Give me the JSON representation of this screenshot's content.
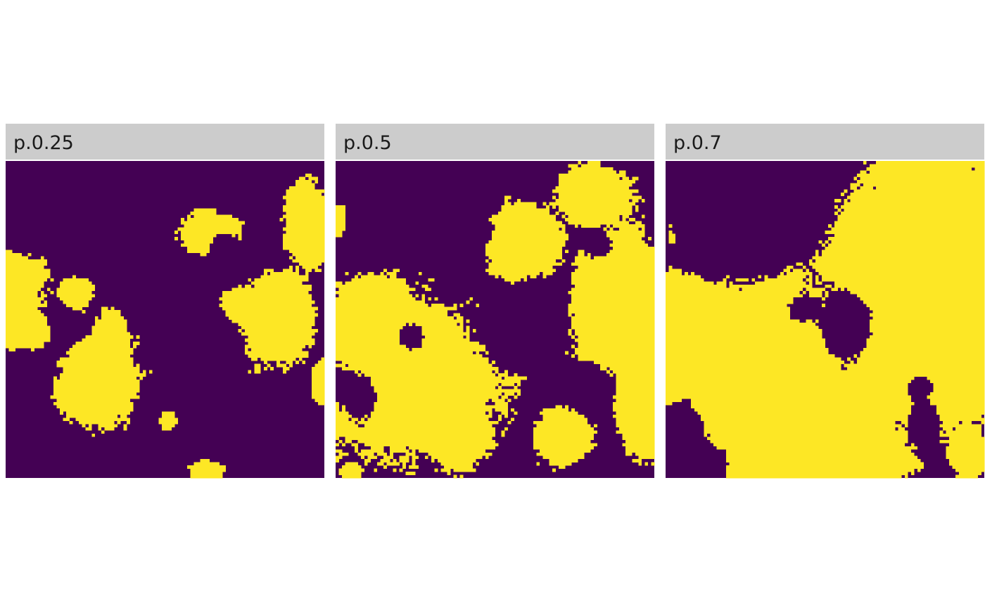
{
  "chart_data": {
    "type": "heatmap",
    "grid_size": 100,
    "legend": "none",
    "grid": false,
    "colors": {
      "low": "#440154",
      "high": "#FDE725",
      "strip": "#CCCCCC",
      "border": "#FFFFFF"
    },
    "panels": [
      {
        "label": "p.0.25",
        "proportion": 0.25,
        "blobs": [
          {
            "cx": -0.03,
            "cy": 0.44,
            "rx": 0.17,
            "ry": 0.16
          },
          {
            "cx": 0.08,
            "cy": 0.53,
            "rx": 0.1,
            "ry": 0.07
          },
          {
            "cx": 0.29,
            "cy": 0.7,
            "rx": 0.14,
            "ry": 0.17
          },
          {
            "cx": 0.33,
            "cy": 0.56,
            "rx": 0.06,
            "ry": 0.11
          },
          {
            "cx": 0.22,
            "cy": 0.42,
            "rx": 0.06,
            "ry": 0.06
          },
          {
            "cx": 0.51,
            "cy": 0.82,
            "rx": 0.03,
            "ry": 0.03
          },
          {
            "cx": 0.65,
            "cy": 0.23,
            "rx": 0.1,
            "ry": 0.08
          },
          {
            "cx": 0.86,
            "cy": 0.49,
            "rx": 0.13,
            "ry": 0.15
          },
          {
            "cx": 0.73,
            "cy": 0.45,
            "rx": 0.06,
            "ry": 0.06
          },
          {
            "cx": 0.95,
            "cy": 0.19,
            "rx": 0.08,
            "ry": 0.15
          },
          {
            "cx": 0.63,
            "cy": 0.98,
            "rx": 0.06,
            "ry": 0.04
          },
          {
            "cx": 0.99,
            "cy": 0.7,
            "rx": 0.03,
            "ry": 0.07
          }
        ],
        "holes": [
          {
            "cx": 0.18,
            "cy": 0.52,
            "rx": 0.05,
            "ry": 0.05
          },
          {
            "cx": 0.68,
            "cy": 0.26,
            "rx": 0.04,
            "ry": 0.04
          }
        ]
      },
      {
        "label": "p.0.5",
        "proportion": 0.5,
        "blobs": [
          {
            "cx": 0.23,
            "cy": 0.68,
            "rx": 0.28,
            "ry": 0.26
          },
          {
            "cx": 0.12,
            "cy": 0.5,
            "rx": 0.15,
            "ry": 0.15
          },
          {
            "cx": 0.37,
            "cy": 0.82,
            "rx": 0.12,
            "ry": 0.15
          },
          {
            "cx": 0.6,
            "cy": 0.26,
            "rx": 0.13,
            "ry": 0.12
          },
          {
            "cx": 0.9,
            "cy": 0.45,
            "rx": 0.16,
            "ry": 0.28
          },
          {
            "cx": 0.82,
            "cy": 0.12,
            "rx": 0.13,
            "ry": 0.1
          },
          {
            "cx": 0.95,
            "cy": 0.75,
            "rx": 0.08,
            "ry": 0.18
          },
          {
            "cx": 0.72,
            "cy": 0.87,
            "rx": 0.1,
            "ry": 0.1
          },
          {
            "cx": 0.01,
            "cy": 0.18,
            "rx": 0.02,
            "ry": 0.05
          },
          {
            "cx": 0.05,
            "cy": 0.98,
            "rx": 0.03,
            "ry": 0.03
          }
        ],
        "holes": [
          {
            "cx": 0.24,
            "cy": 0.56,
            "rx": 0.04,
            "ry": 0.04
          },
          {
            "cx": 0.55,
            "cy": 0.57,
            "rx": 0.05,
            "ry": 0.07
          },
          {
            "cx": 0.83,
            "cy": 0.27,
            "rx": 0.03,
            "ry": 0.03
          },
          {
            "cx": 0.08,
            "cy": 0.73,
            "rx": 0.06,
            "ry": 0.07
          },
          {
            "cx": 0.8,
            "cy": 0.72,
            "rx": 0.05,
            "ry": 0.06
          }
        ]
      },
      {
        "label": "p.0.7",
        "proportion": 0.7,
        "blobs": [
          {
            "cx": 0.3,
            "cy": 0.68,
            "rx": 0.34,
            "ry": 0.4
          },
          {
            "cx": 0.05,
            "cy": 0.55,
            "rx": 0.13,
            "ry": 0.3
          },
          {
            "cx": 0.76,
            "cy": 0.3,
            "rx": 0.32,
            "ry": 0.32
          },
          {
            "cx": 0.78,
            "cy": 0.62,
            "rx": 0.3,
            "ry": 0.23
          },
          {
            "cx": 0.76,
            "cy": 0.05,
            "rx": 0.1,
            "ry": 0.08
          },
          {
            "cx": 0.58,
            "cy": 0.92,
            "rx": 0.2,
            "ry": 0.12
          },
          {
            "cx": 0.95,
            "cy": 0.92,
            "rx": 0.06,
            "ry": 0.1
          },
          {
            "cx": 0.02,
            "cy": 0.22,
            "rx": 0.04,
            "ry": 0.07
          }
        ],
        "holes": [
          {
            "cx": 0.57,
            "cy": 0.52,
            "rx": 0.08,
            "ry": 0.12
          },
          {
            "cx": 0.43,
            "cy": 0.47,
            "rx": 0.05,
            "ry": 0.04
          },
          {
            "cx": 0.81,
            "cy": 0.81,
            "rx": 0.04,
            "ry": 0.04
          },
          {
            "cx": 0.04,
            "cy": 0.85,
            "rx": 0.07,
            "ry": 0.1
          },
          {
            "cx": 0.22,
            "cy": 0.16,
            "rx": 0.28,
            "ry": 0.19
          },
          {
            "cx": 0.8,
            "cy": 0.71,
            "rx": 0.05,
            "ry": 0.05
          },
          {
            "cx": 0.14,
            "cy": 0.95,
            "rx": 0.06,
            "ry": 0.05
          }
        ]
      }
    ]
  }
}
